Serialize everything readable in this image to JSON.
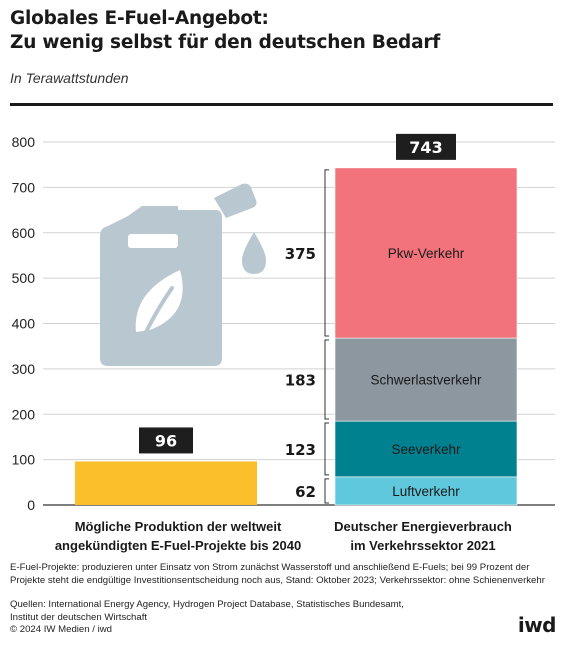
{
  "header": {
    "title_line1": "Globales E-Fuel-Angebot:",
    "title_line2": "Zu wenig selbst für den deutschen Bedarf",
    "subtitle": "In Terawattstunden"
  },
  "chart_data": {
    "type": "bar",
    "ylim": [
      0,
      800
    ],
    "yticks": [
      0,
      100,
      200,
      300,
      400,
      500,
      600,
      700,
      800
    ],
    "grid": true,
    "bars": [
      {
        "category_line1": "Mögliche Produktion der weltweit",
        "category_line2": "angekündigten E-Fuel-Projekte bis 2040",
        "value": 96,
        "total_label": "96",
        "color": "#fbbf2c",
        "icon": "fuel-canister-leaf-icon"
      },
      {
        "category_line1": "Deutscher Energieverbrauch",
        "category_line2": "im Verkehrssektor 2021",
        "total_label": "743",
        "stacked": true,
        "segments": [
          {
            "name": "Luftverkehr",
            "value": 62,
            "label": "62",
            "color": "#5fc8dc"
          },
          {
            "name": "Seeverkehr",
            "value": 123,
            "label": "123",
            "color": "#00818f"
          },
          {
            "name": "Schwerlastverkehr",
            "value": 183,
            "label": "183",
            "color": "#8d979f"
          },
          {
            "name": "Pkw-Verkehr",
            "value": 375,
            "label": "375",
            "color": "#f2737b"
          }
        ]
      }
    ]
  },
  "footer": {
    "footnote": "E-Fuel-Projekte: produzieren unter Einsatz von Strom zunächst Wasserstoff und anschließend E-Fuels; bei 99 Prozent der Projekte steht die endgültige Investitionsentscheidung noch aus, Stand: Oktober 2023; Verkehrssektor: ohne Schienenverkehr",
    "sources_line1": "Quellen: International Energy Agency, Hydrogen Project Database, Statistisches Bundesamt,",
    "sources_line2": "Institut der deutschen Wirtschaft",
    "copyright": "© 2024 IW Medien / iwd",
    "logo": "iwd"
  }
}
